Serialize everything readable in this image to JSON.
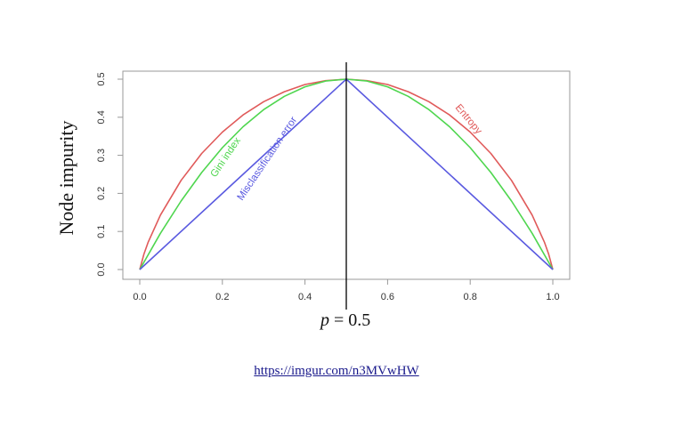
{
  "chart_data": {
    "type": "line",
    "title": "",
    "xlabel": "",
    "ylabel": "Node impurity",
    "xlim": [
      0,
      1
    ],
    "ylim": [
      0,
      0.5
    ],
    "x_ticks": [
      "0.0",
      "0.2",
      "0.4",
      "0.6",
      "0.8",
      "1.0"
    ],
    "y_ticks": [
      "0.0",
      "0.1",
      "0.2",
      "0.3",
      "0.4",
      "0.5"
    ],
    "grid": false,
    "series": [
      {
        "name": "Entropy",
        "color": "#e05a5a",
        "x": [
          0.0,
          0.01,
          0.02,
          0.05,
          0.1,
          0.15,
          0.2,
          0.25,
          0.3,
          0.35,
          0.4,
          0.45,
          0.5,
          0.55,
          0.6,
          0.65,
          0.7,
          0.75,
          0.8,
          0.85,
          0.9,
          0.95,
          0.98,
          0.99,
          1.0
        ],
        "y": [
          0.0,
          0.04,
          0.071,
          0.143,
          0.234,
          0.305,
          0.361,
          0.406,
          0.441,
          0.467,
          0.486,
          0.496,
          0.5,
          0.496,
          0.486,
          0.467,
          0.441,
          0.406,
          0.361,
          0.305,
          0.234,
          0.143,
          0.071,
          0.04,
          0.0
        ]
      },
      {
        "name": "Gini index",
        "color": "#4fd64f",
        "x": [
          0.0,
          0.05,
          0.1,
          0.15,
          0.2,
          0.25,
          0.3,
          0.35,
          0.4,
          0.45,
          0.5,
          0.55,
          0.6,
          0.65,
          0.7,
          0.75,
          0.8,
          0.85,
          0.9,
          0.95,
          1.0
        ],
        "y": [
          0.0,
          0.095,
          0.18,
          0.255,
          0.32,
          0.375,
          0.42,
          0.455,
          0.48,
          0.495,
          0.5,
          0.495,
          0.48,
          0.455,
          0.42,
          0.375,
          0.32,
          0.255,
          0.18,
          0.095,
          0.0
        ]
      },
      {
        "name": "Misclassification error",
        "color": "#5a5ae0",
        "x": [
          0.0,
          0.5,
          1.0
        ],
        "y": [
          0.0,
          0.5,
          0.0
        ]
      }
    ],
    "vline": {
      "x": 0.5,
      "color": "#000000"
    },
    "annotation": {
      "p": "p",
      "eq": " = 0.5"
    }
  },
  "footer": {
    "link_text": "https://imgur.com/n3MVwHW"
  }
}
